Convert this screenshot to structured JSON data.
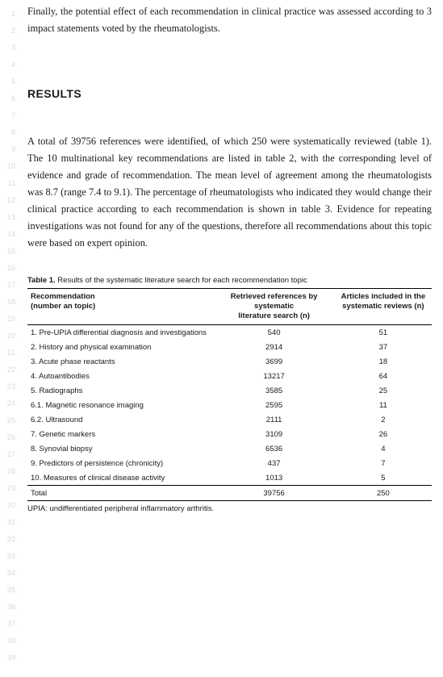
{
  "lineNumbers": [
    "1.",
    "2.",
    "3.",
    "4.",
    "5.",
    "6.",
    "7.",
    "8.",
    "9.",
    "10.",
    "11.",
    "12.",
    "13.",
    "14.",
    "15.",
    "16.",
    "17.",
    "18.",
    "19.",
    "20.",
    "21.",
    "22.",
    "23.",
    "24.",
    "25.",
    "26.",
    "27.",
    "28.",
    "29.",
    "30.",
    "31.",
    "32.",
    "33.",
    "34.",
    "35.",
    "36.",
    "37.",
    "38.",
    "39."
  ],
  "para1": "Finally, the potential effect of each recommendation in clinical practice was assessed according to 3 impact statements voted by the rheumatologists.",
  "heading": "RESULTS",
  "para2": "A total of 39756 references were identified, of which 250 were systematically reviewed (table 1). The 10 multinational key recommendations are listed in table 2, with the corresponding level of evidence and grade of recommendation. The mean level of agreement among the rheumatologists was 8.7 (range 7.4 to 9.1). The percentage of rheumatologists who indicated they would change their clinical practice according to each recommendation is shown in table 3. Evidence for repeating investigations was not found for any of the questions, therefore all recommendations about this topic were based on expert opinion.",
  "tableCaptionBold": "Table 1.",
  "tableCaptionRest": " Results of the systematic literature search for each recommendation topic",
  "table": {
    "headers": {
      "c1a": "Recommendation",
      "c1b": "(number an topic)",
      "c2a": "Retrieved references by systematic",
      "c2b": "literature search (n)",
      "c3a": "Articles included in the",
      "c3b": "systematic reviews (n)"
    },
    "rows": [
      {
        "c1": "1. Pre-UPIA differential diagnosis and investigations",
        "c2": "540",
        "c3": "51"
      },
      {
        "c1": "2. History and physical examination",
        "c2": "2914",
        "c3": "37"
      },
      {
        "c1": "3. Acute phase reactants",
        "c2": "3699",
        "c3": "18"
      },
      {
        "c1": "4. Autoantibodies",
        "c2": "13217",
        "c3": "64"
      },
      {
        "c1": "5. Radiographs",
        "c2": "3585",
        "c3": "25"
      },
      {
        "c1": "6.1. Magnetic resonance imaging",
        "c2": "2595",
        "c3": "11"
      },
      {
        "c1": "6.2. Ultrasound",
        "c2": "2111",
        "c3": "2"
      },
      {
        "c1": "7. Genetic markers",
        "c2": "3109",
        "c3": "26"
      },
      {
        "c1": "8. Synovial biopsy",
        "c2": "6536",
        "c3": "4"
      },
      {
        "c1": "9. Predictors of persistence (chronicity)",
        "c2": "437",
        "c3": "7"
      },
      {
        "c1": "10. Measures of clinical disease activity",
        "c2": "1013",
        "c3": "5"
      }
    ],
    "total": {
      "c1": "Total",
      "c2": "39756",
      "c3": "250"
    }
  },
  "footnote": "UPIA: undifferentiated peripheral inflammatory arthritis."
}
